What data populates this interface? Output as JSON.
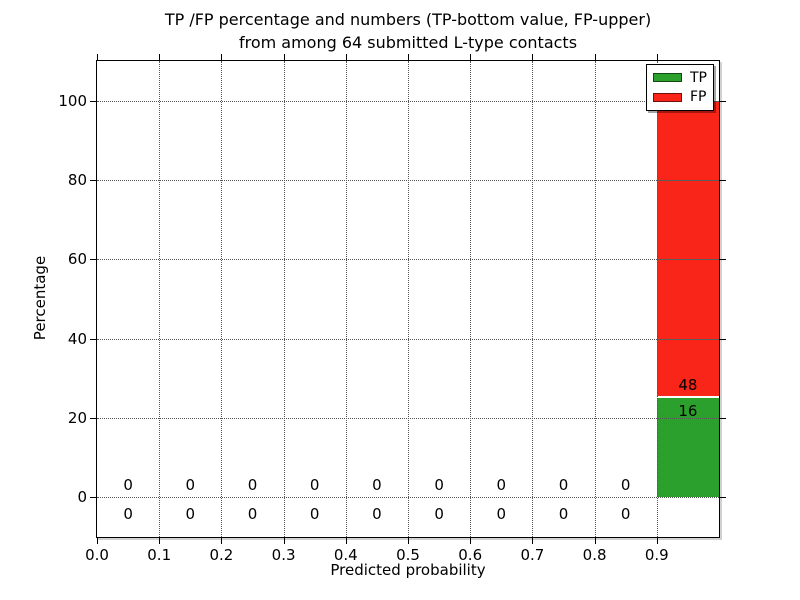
{
  "chart_data": {
    "type": "bar",
    "stacked": true,
    "title_line1": "TP /FP percentage and numbers (TP-bottom value, FP-upper)",
    "title_line2": "from among 64 submitted L-type contacts",
    "xlabel": "Predicted probability",
    "ylabel": "Percentage",
    "total_submitted_contacts": 64,
    "xlim": [
      0.0,
      1.0
    ],
    "ylim": [
      -10,
      110
    ],
    "x_tick_values": [
      0.0,
      0.1,
      0.2,
      0.3,
      0.4,
      0.5,
      0.6,
      0.7,
      0.8,
      0.9
    ],
    "x_tick_labels": [
      "0.0",
      "0.1",
      "0.2",
      "0.3",
      "0.4",
      "0.5",
      "0.6",
      "0.7",
      "0.8",
      "0.9"
    ],
    "y_tick_values": [
      0,
      20,
      40,
      60,
      80,
      100
    ],
    "y_tick_labels": [
      "0",
      "20",
      "40",
      "60",
      "80",
      "100"
    ],
    "grid": {
      "visible": true,
      "style": "dotted"
    },
    "colors": {
      "tp": "#2ca02c",
      "fp": "#f92519",
      "bar_separator": "#ffffff"
    },
    "legend": {
      "position": "upper-right",
      "entries": [
        {
          "label": "TP",
          "color": "#2ca02c"
        },
        {
          "label": "FP",
          "color": "#f92519"
        }
      ]
    },
    "bins": [
      {
        "range": [
          0.0,
          0.1
        ],
        "tp_count": 0,
        "fp_count": 0,
        "tp_pct": 0,
        "fp_pct": 0
      },
      {
        "range": [
          0.1,
          0.2
        ],
        "tp_count": 0,
        "fp_count": 0,
        "tp_pct": 0,
        "fp_pct": 0
      },
      {
        "range": [
          0.2,
          0.3
        ],
        "tp_count": 0,
        "fp_count": 0,
        "tp_pct": 0,
        "fp_pct": 0
      },
      {
        "range": [
          0.3,
          0.4
        ],
        "tp_count": 0,
        "fp_count": 0,
        "tp_pct": 0,
        "fp_pct": 0
      },
      {
        "range": [
          0.4,
          0.5
        ],
        "tp_count": 0,
        "fp_count": 0,
        "tp_pct": 0,
        "fp_pct": 0
      },
      {
        "range": [
          0.5,
          0.6
        ],
        "tp_count": 0,
        "fp_count": 0,
        "tp_pct": 0,
        "fp_pct": 0
      },
      {
        "range": [
          0.6,
          0.7
        ],
        "tp_count": 0,
        "fp_count": 0,
        "tp_pct": 0,
        "fp_pct": 0
      },
      {
        "range": [
          0.7,
          0.8
        ],
        "tp_count": 0,
        "fp_count": 0,
        "tp_pct": 0,
        "fp_pct": 0
      },
      {
        "range": [
          0.8,
          0.9
        ],
        "tp_count": 0,
        "fp_count": 0,
        "tp_pct": 0,
        "fp_pct": 0
      },
      {
        "range": [
          0.9,
          1.0
        ],
        "tp_count": 16,
        "fp_count": 48,
        "tp_pct": 25,
        "fp_pct": 75
      }
    ]
  }
}
